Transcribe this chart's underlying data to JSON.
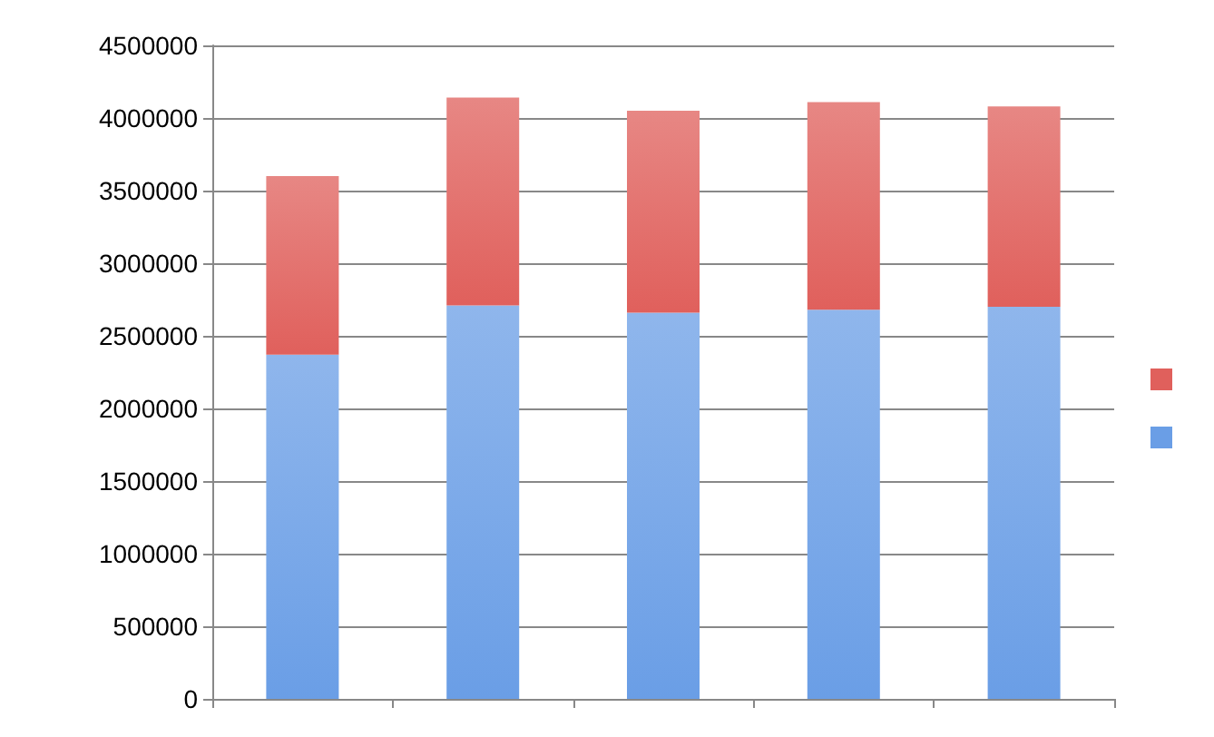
{
  "chart_data": {
    "type": "bar",
    "stacked": true,
    "categories": [
      null,
      null,
      null,
      null,
      null
    ],
    "series": [
      {
        "color": "#6a9ee6",
        "values": [
          2370000,
          2710000,
          2660000,
          2680000,
          2700000
        ]
      },
      {
        "color": "#e0605c",
        "values": [
          1230000,
          1430000,
          1390000,
          1430000,
          1380000
        ]
      }
    ],
    "ylim": [
      0,
      4500000
    ],
    "yticks": [
      0,
      500000,
      1000000,
      1500000,
      2000000,
      2500000,
      3000000,
      3500000,
      4000000,
      4500000
    ],
    "grid": "y"
  }
}
